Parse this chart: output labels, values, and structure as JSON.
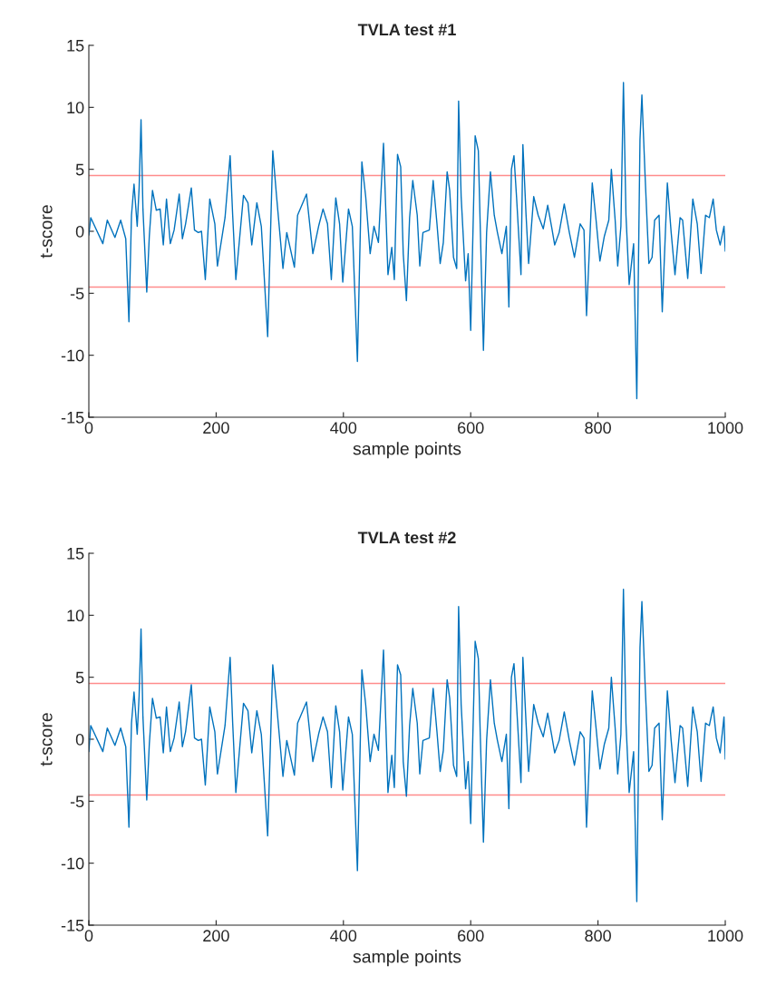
{
  "chart_data": [
    {
      "type": "line",
      "title": "TVLA test #1",
      "xlabel": "sample points",
      "ylabel": "t-score",
      "xlim": [
        0,
        1000
      ],
      "xticks": [
        0,
        200,
        400,
        600,
        800,
        1000
      ],
      "ylim": [
        -15,
        15
      ],
      "yticks": [
        -15,
        -10,
        -5,
        0,
        5,
        10,
        15
      ],
      "grid": false,
      "marker": "none",
      "line_style": "solid",
      "ref_lines": [
        {
          "axis": "y",
          "value": 4.5,
          "color": "#ff8c8c"
        },
        {
          "axis": "y",
          "value": -4.5,
          "color": "#ff8c8c"
        }
      ],
      "series": [
        {
          "color": "#0072bd",
          "x": [
            0,
            3,
            22,
            29,
            41,
            50,
            58,
            63,
            67,
            71,
            76,
            79,
            82,
            85,
            91,
            95,
            100,
            106,
            112,
            117,
            122,
            128,
            134,
            142,
            147,
            152,
            161,
            166,
            172,
            177,
            183,
            190,
            198,
            202,
            214,
            222,
            226,
            231,
            243,
            250,
            256,
            264,
            271,
            281,
            289,
            295,
            305,
            311,
            323,
            328,
            342,
            352,
            361,
            368,
            375,
            381,
            388,
            394,
            399,
            408,
            414,
            422,
            429,
            435,
            442,
            448,
            455,
            463,
            470,
            476,
            480,
            485,
            490,
            494,
            499,
            504,
            509,
            516,
            520,
            525,
            535,
            541,
            547,
            552,
            557,
            563,
            567,
            573,
            578,
            581,
            585,
            592,
            596,
            600,
            607,
            612,
            615,
            620,
            625,
            631,
            637,
            642,
            649,
            656,
            660,
            664,
            668,
            672,
            679,
            682,
            687,
            691,
            699,
            706,
            714,
            721,
            727,
            732,
            739,
            747,
            755,
            763,
            772,
            778,
            782,
            791,
            797,
            803,
            810,
            817,
            821,
            827,
            831,
            836,
            840,
            844,
            849,
            856,
            861,
            866,
            869,
            874,
            880,
            885,
            889,
            896,
            901,
            909,
            915,
            921,
            929,
            933,
            941,
            949,
            956,
            962,
            969,
            975,
            981,
            986,
            992,
            998,
            1000
          ],
          "values": [
            -0.3,
            1.1,
            -1.0,
            0.9,
            -0.5,
            0.9,
            -0.6,
            -7.3,
            1.3,
            3.8,
            0.4,
            3.5,
            9.0,
            1.8,
            -4.9,
            -0.4,
            3.3,
            1.7,
            1.8,
            -1.1,
            2.6,
            -1.0,
            0.1,
            3.0,
            -0.6,
            0.6,
            3.5,
            0.1,
            -0.1,
            0.0,
            -3.9,
            2.6,
            0.6,
            -2.8,
            1.1,
            6.1,
            1.3,
            -3.9,
            2.9,
            2.3,
            -1.1,
            2.3,
            0.4,
            -8.5,
            6.5,
            2.8,
            -3.0,
            -0.1,
            -2.9,
            1.3,
            3.0,
            -1.8,
            0.4,
            1.8,
            0.6,
            -3.9,
            2.7,
            0.6,
            -4.1,
            1.8,
            0.4,
            -10.5,
            5.6,
            2.8,
            -1.8,
            0.4,
            -0.9,
            7.1,
            -3.5,
            -1.3,
            -3.9,
            6.2,
            5.2,
            -1.8,
            -5.6,
            1.1,
            4.1,
            1.3,
            -2.8,
            -0.1,
            0.1,
            4.1,
            0.6,
            -2.6,
            -0.9,
            4.8,
            3.3,
            -2.1,
            -3.0,
            10.5,
            2.8,
            -4.0,
            -1.8,
            -8.0,
            7.7,
            6.5,
            0.4,
            -9.6,
            -0.1,
            4.8,
            1.3,
            -0.1,
            -1.8,
            0.4,
            -6.1,
            5.0,
            6.1,
            2.8,
            -3.5,
            7.0,
            1.3,
            -2.6,
            2.8,
            1.3,
            0.2,
            2.1,
            0.4,
            -1.1,
            -0.1,
            2.2,
            -0.1,
            -2.1,
            0.6,
            0.1,
            -6.8,
            3.9,
            0.9,
            -2.4,
            -0.4,
            0.9,
            5.0,
            0.9,
            -2.8,
            0.4,
            12.0,
            1.3,
            -4.3,
            -1.0,
            -13.5,
            7.4,
            11.0,
            4.5,
            -2.6,
            -2.1,
            0.9,
            1.3,
            -6.5,
            3.9,
            -0.1,
            -3.5,
            1.1,
            0.9,
            -3.8,
            2.6,
            0.6,
            -3.4,
            1.3,
            1.1,
            2.6,
            0.1,
            -1.1,
            0.4,
            -1.6
          ]
        }
      ]
    },
    {
      "type": "line",
      "title": "TVLA test #2",
      "xlabel": "sample points",
      "ylabel": "t-score",
      "xlim": [
        0,
        1000
      ],
      "xticks": [
        0,
        200,
        400,
        600,
        800,
        1000
      ],
      "ylim": [
        -15,
        15
      ],
      "yticks": [
        -15,
        -10,
        -5,
        0,
        5,
        10,
        15
      ],
      "grid": false,
      "marker": "none",
      "line_style": "solid",
      "ref_lines": [
        {
          "axis": "y",
          "value": 4.5,
          "color": "#ff8c8c"
        },
        {
          "axis": "y",
          "value": -4.5,
          "color": "#ff8c8c"
        }
      ],
      "series": [
        {
          "color": "#0072bd",
          "x": [
            0,
            3,
            22,
            29,
            41,
            50,
            58,
            63,
            67,
            71,
            76,
            79,
            82,
            85,
            91,
            95,
            100,
            106,
            112,
            117,
            122,
            128,
            134,
            142,
            147,
            152,
            161,
            166,
            172,
            177,
            183,
            190,
            198,
            202,
            214,
            222,
            226,
            231,
            243,
            250,
            256,
            264,
            271,
            281,
            289,
            295,
            305,
            311,
            323,
            328,
            342,
            352,
            361,
            368,
            375,
            381,
            388,
            394,
            399,
            408,
            414,
            422,
            429,
            435,
            442,
            448,
            455,
            463,
            470,
            476,
            480,
            485,
            490,
            494,
            499,
            504,
            509,
            516,
            520,
            525,
            535,
            541,
            547,
            552,
            557,
            563,
            567,
            573,
            578,
            581,
            585,
            592,
            596,
            600,
            607,
            612,
            615,
            620,
            625,
            631,
            637,
            642,
            649,
            656,
            660,
            664,
            668,
            672,
            679,
            682,
            687,
            691,
            699,
            706,
            714,
            721,
            727,
            732,
            739,
            747,
            755,
            763,
            772,
            778,
            782,
            791,
            797,
            803,
            810,
            817,
            821,
            827,
            831,
            836,
            840,
            844,
            849,
            856,
            861,
            866,
            869,
            874,
            880,
            885,
            889,
            896,
            901,
            909,
            915,
            921,
            929,
            933,
            941,
            949,
            956,
            962,
            969,
            975,
            981,
            986,
            992,
            998,
            1000
          ],
          "values": [
            -1.0,
            1.1,
            -1.0,
            0.9,
            -0.5,
            0.9,
            -0.6,
            -7.1,
            1.3,
            3.8,
            0.4,
            3.5,
            8.9,
            1.8,
            -4.9,
            -0.4,
            3.3,
            1.7,
            1.8,
            -1.1,
            2.6,
            -1.0,
            0.1,
            3.0,
            -0.6,
            0.6,
            4.4,
            0.1,
            -0.1,
            0.0,
            -3.7,
            2.6,
            0.6,
            -2.8,
            1.1,
            6.6,
            1.3,
            -4.3,
            2.9,
            2.3,
            -1.1,
            2.3,
            0.4,
            -7.8,
            6.0,
            2.8,
            -3.0,
            -0.1,
            -2.9,
            1.3,
            3.0,
            -1.8,
            0.4,
            1.8,
            0.6,
            -3.9,
            2.7,
            0.6,
            -4.1,
            1.8,
            0.4,
            -10.6,
            5.6,
            2.8,
            -1.8,
            0.4,
            -0.9,
            7.2,
            -4.3,
            -1.3,
            -3.9,
            6.0,
            5.2,
            -1.8,
            -4.6,
            1.1,
            4.1,
            1.3,
            -2.8,
            -0.1,
            0.1,
            4.1,
            0.6,
            -2.6,
            -0.9,
            4.8,
            3.3,
            -2.1,
            -3.0,
            10.7,
            2.8,
            -4.0,
            -1.8,
            -6.8,
            7.9,
            6.5,
            0.4,
            -8.3,
            -0.1,
            4.8,
            1.3,
            -0.1,
            -1.8,
            0.4,
            -5.6,
            5.0,
            6.1,
            2.8,
            -3.5,
            6.6,
            1.3,
            -2.6,
            2.8,
            1.3,
            0.2,
            2.1,
            0.4,
            -1.1,
            -0.1,
            2.2,
            -0.1,
            -2.1,
            0.6,
            0.1,
            -7.1,
            3.9,
            0.9,
            -2.4,
            -0.4,
            0.9,
            5.0,
            0.9,
            -2.8,
            0.4,
            12.1,
            1.3,
            -4.3,
            -1.0,
            -13.1,
            7.4,
            11.1,
            4.5,
            -2.6,
            -2.1,
            0.9,
            1.3,
            -6.5,
            3.9,
            -0.1,
            -3.5,
            1.1,
            0.9,
            -3.8,
            2.6,
            0.6,
            -3.4,
            1.3,
            1.1,
            2.6,
            0.1,
            -1.1,
            1.8,
            -1.6
          ]
        }
      ]
    }
  ]
}
